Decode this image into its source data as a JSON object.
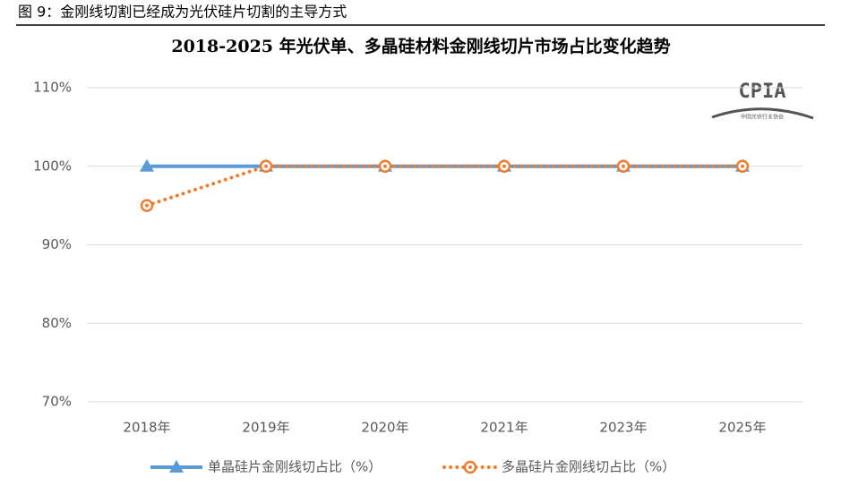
{
  "caption": "图 9：金刚线切割已经成为光伏硅片切割的主导方式",
  "logo": {
    "name": "CPIA",
    "subtitle": "中国光伏行业协会"
  },
  "chart_data": {
    "type": "line",
    "title": "2018-2025 年光伏单、多晶硅材料金刚线切片市场占比变化趋势",
    "categories": [
      "2018年",
      "2019年",
      "2020年",
      "2021年",
      "2023年",
      "2025年"
    ],
    "series": [
      {
        "name": "单晶硅片金刚线切占比（%）",
        "color": "#5b9bd5",
        "marker": "triangle",
        "line": "solid",
        "values": [
          100,
          100,
          100,
          100,
          100,
          100
        ]
      },
      {
        "name": "多晶硅片金刚线切占比（%）",
        "color": "#ed7d31",
        "marker": "circle",
        "line": "dotted",
        "values": [
          95,
          100,
          100,
          100,
          100,
          100
        ]
      }
    ],
    "ylim": [
      70,
      110
    ],
    "yticks": [
      {
        "value": 70,
        "label": "70%"
      },
      {
        "value": 80,
        "label": "80%"
      },
      {
        "value": 90,
        "label": "90%"
      },
      {
        "value": 100,
        "label": "100%"
      },
      {
        "value": 110,
        "label": "110%"
      }
    ],
    "grid": true,
    "legend": "bottom"
  }
}
